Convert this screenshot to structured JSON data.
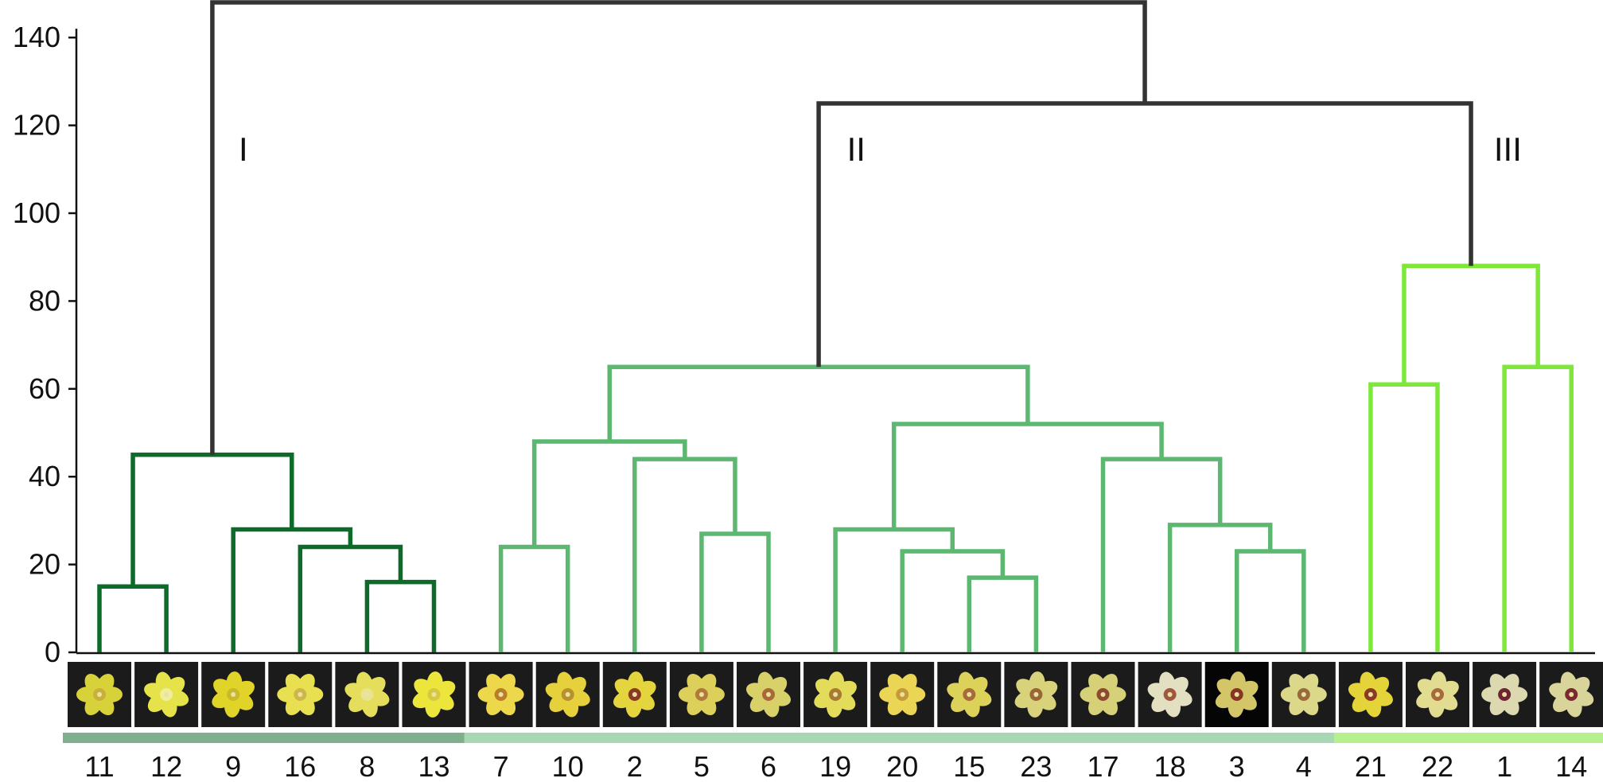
{
  "chart_data": {
    "type": "dendrogram",
    "y_ticks": [
      0,
      20,
      40,
      60,
      80,
      100,
      120,
      140
    ],
    "ylim": [
      0,
      148
    ],
    "leaf_order": [
      "11",
      "12",
      "9",
      "16",
      "8",
      "13",
      "7",
      "10",
      "2",
      "5",
      "6",
      "19",
      "20",
      "15",
      "23",
      "17",
      "18",
      "3",
      "4",
      "21",
      "22",
      "1",
      "14"
    ],
    "clusters": [
      {
        "label": "I",
        "color": "#0d6b2a",
        "bar_color": "#7fb08d",
        "leaves": [
          "11",
          "12",
          "9",
          "16",
          "8",
          "13"
        ]
      },
      {
        "label": "II",
        "color": "#5cb870",
        "bar_color": "#a8d8b3",
        "leaves": [
          "7",
          "10",
          "2",
          "5",
          "6",
          "19",
          "20",
          "15",
          "23",
          "17",
          "18",
          "3",
          "4"
        ]
      },
      {
        "label": "III",
        "color": "#7ee83a",
        "bar_color": "#b6f08e",
        "leaves": [
          "21",
          "22",
          "1",
          "14"
        ]
      }
    ],
    "merges": [
      {
        "id": "a",
        "left": "11",
        "right": "12",
        "height": 15,
        "color": "#0d6b2a"
      },
      {
        "id": "b",
        "left": "8",
        "right": "13",
        "height": 16,
        "color": "#0d6b2a"
      },
      {
        "id": "c",
        "left": "16",
        "right": "b",
        "height": 24,
        "color": "#0d6b2a"
      },
      {
        "id": "d",
        "left": "9",
        "right": "c",
        "height": 28,
        "color": "#0d6b2a"
      },
      {
        "id": "e",
        "left": "a",
        "right": "d",
        "height": 45,
        "color": "#0d6b2a"
      },
      {
        "id": "f",
        "left": "7",
        "right": "10",
        "height": 24,
        "color": "#5cb870"
      },
      {
        "id": "g",
        "left": "5",
        "right": "6",
        "height": 27,
        "color": "#5cb870"
      },
      {
        "id": "h",
        "left": "2",
        "right": "g",
        "height": 44,
        "color": "#5cb870"
      },
      {
        "id": "i",
        "left": "f",
        "right": "h",
        "height": 48,
        "color": "#5cb870"
      },
      {
        "id": "j",
        "left": "15",
        "right": "23",
        "height": 17,
        "color": "#5cb870"
      },
      {
        "id": "k",
        "left": "20",
        "right": "j",
        "height": 23,
        "color": "#5cb870"
      },
      {
        "id": "l",
        "left": "19",
        "right": "k",
        "height": 28,
        "color": "#5cb870"
      },
      {
        "id": "m",
        "left": "3",
        "right": "4",
        "height": 23,
        "color": "#5cb870"
      },
      {
        "id": "n",
        "left": "18",
        "right": "m",
        "height": 29,
        "color": "#5cb870"
      },
      {
        "id": "o",
        "left": "17",
        "right": "n",
        "height": 44,
        "color": "#5cb870"
      },
      {
        "id": "p",
        "left": "l",
        "right": "o",
        "height": 52,
        "color": "#5cb870"
      },
      {
        "id": "q",
        "left": "i",
        "right": "p",
        "height": 65,
        "color": "#5cb870"
      },
      {
        "id": "r",
        "left": "21",
        "right": "22",
        "height": 61,
        "color": "#7ee83a"
      },
      {
        "id": "s",
        "left": "1",
        "right": "14",
        "height": 65,
        "color": "#7ee83a"
      },
      {
        "id": "t",
        "left": "r",
        "right": "s",
        "height": 88,
        "color": "#7ee83a"
      },
      {
        "id": "u",
        "left": "q",
        "right": "t",
        "height": 125,
        "color": "#333333"
      },
      {
        "id": "v",
        "left": "e",
        "right": "u",
        "height": 148,
        "color": "#333333"
      }
    ],
    "photos": [
      {
        "leaf": "11",
        "petal": "#d8d23a",
        "center": "#c9b03a"
      },
      {
        "leaf": "12",
        "petal": "#e6e34a",
        "center": "#f0ee9a"
      },
      {
        "leaf": "9",
        "petal": "#e0d428",
        "center": "#c8b82a"
      },
      {
        "leaf": "16",
        "petal": "#e8e050",
        "center": "#cfb64a"
      },
      {
        "leaf": "8",
        "petal": "#e4de5c",
        "center": "#e8e490"
      },
      {
        "leaf": "13",
        "petal": "#ece63c",
        "center": "#d6c840"
      },
      {
        "leaf": "7",
        "petal": "#ecd84a",
        "center": "#b87e2a"
      },
      {
        "leaf": "10",
        "petal": "#e6d03c",
        "center": "#b8902e"
      },
      {
        "leaf": "2",
        "petal": "#e4d43e",
        "center": "#8a3a22"
      },
      {
        "leaf": "5",
        "petal": "#dcd05a",
        "center": "#b07a3a"
      },
      {
        "leaf": "6",
        "petal": "#d8d068",
        "center": "#a8683a"
      },
      {
        "leaf": "19",
        "petal": "#e2dc5a",
        "center": "#a87a32"
      },
      {
        "leaf": "20",
        "petal": "#ead654",
        "center": "#c49a3a"
      },
      {
        "leaf": "15",
        "petal": "#dcd25a",
        "center": "#a86a3a"
      },
      {
        "leaf": "23",
        "petal": "#d8d27a",
        "center": "#9a6638"
      },
      {
        "leaf": "17",
        "petal": "#d6d078",
        "center": "#8e4a30"
      },
      {
        "leaf": "18",
        "petal": "#e2e0c0",
        "center": "#a05640"
      },
      {
        "leaf": "3",
        "petal": "#d2c668",
        "center": "#8a3424"
      },
      {
        "leaf": "4",
        "petal": "#dcd88a",
        "center": "#9a6a3a"
      },
      {
        "leaf": "21",
        "petal": "#e4d43a",
        "center": "#8c3a24"
      },
      {
        "leaf": "22",
        "petal": "#e2dc90",
        "center": "#a86a3a"
      },
      {
        "leaf": "1",
        "petal": "#dcd8b0",
        "center": "#6e2430"
      },
      {
        "leaf": "14",
        "petal": "#d8d49a",
        "center": "#7a2a2e"
      }
    ]
  }
}
